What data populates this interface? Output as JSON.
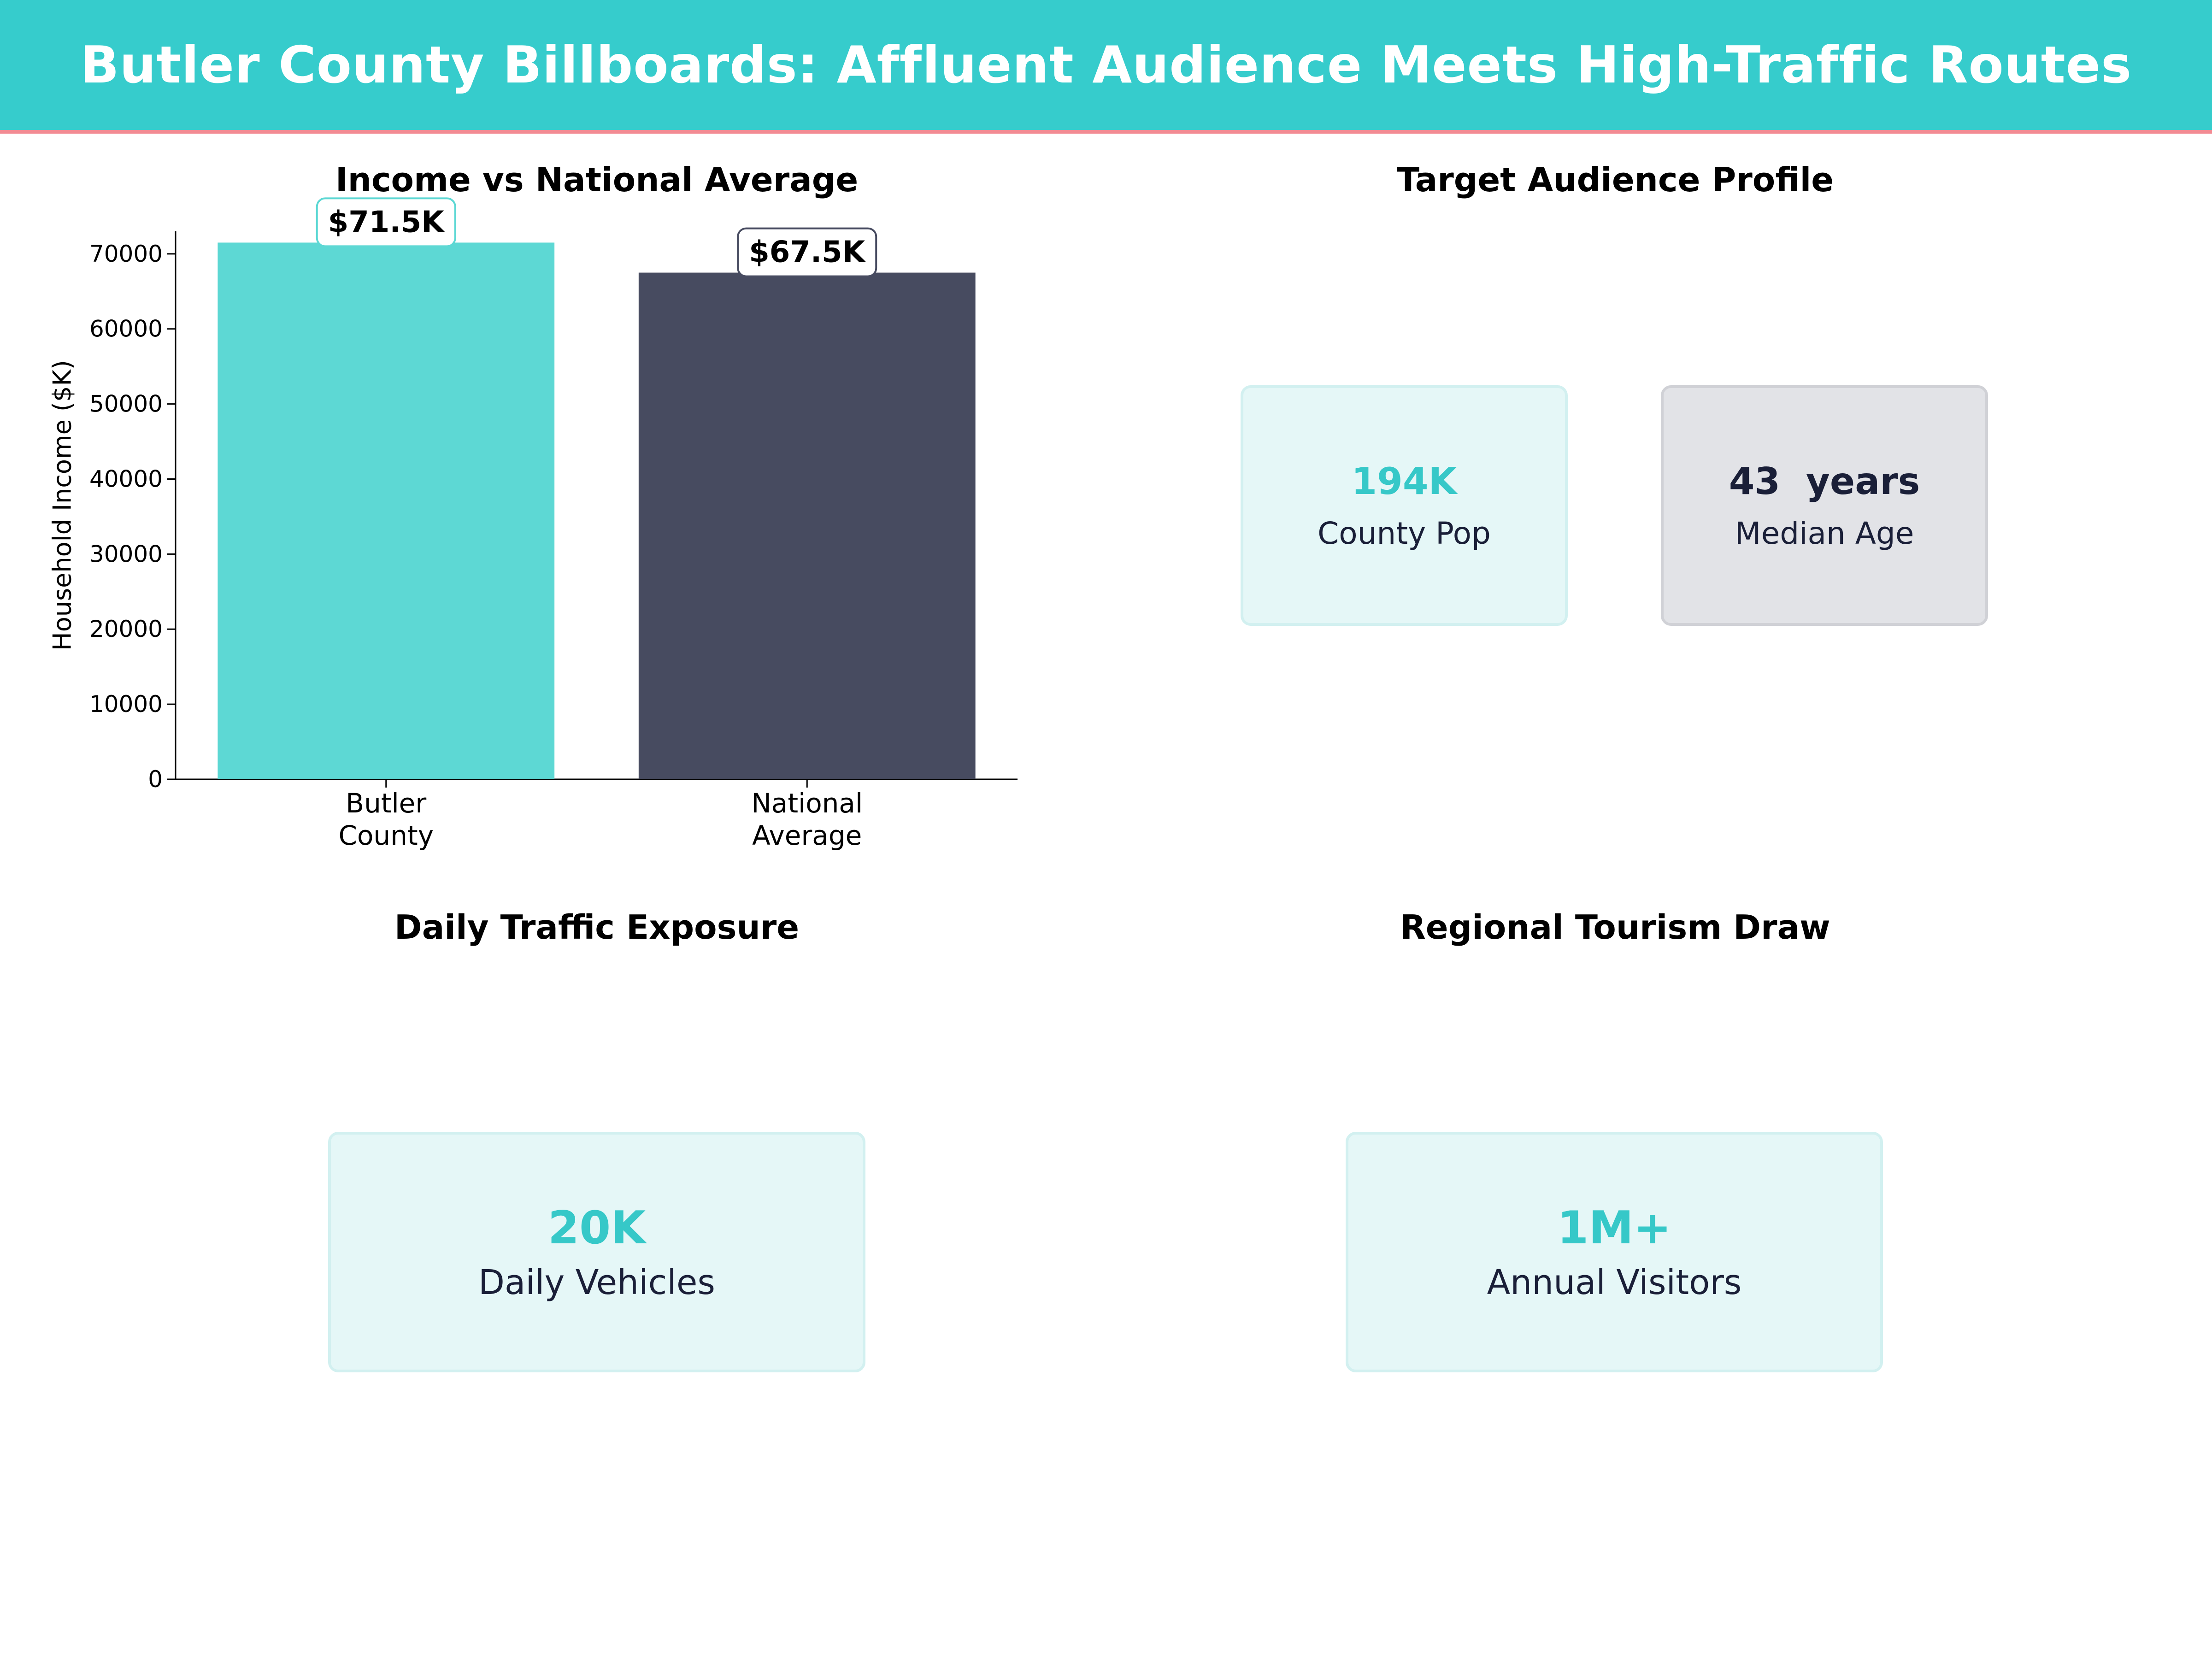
{
  "header": {
    "title": "Butler County Billboards: Affluent Audience Meets High-Traffic Routes"
  },
  "colors": {
    "header_bg": "#36cccc",
    "header_border": "#f28b93",
    "teal": "#5dd8d4",
    "teal_text": "#36c8c8",
    "navy": "#474b60",
    "navy_text": "#1a1f38"
  },
  "panels": {
    "income": {
      "title": "Income vs National Average"
    },
    "audience": {
      "title": "Target Audience Profile",
      "cards": [
        {
          "value": "194K",
          "label": "County Pop",
          "style": "teal"
        },
        {
          "value": "43  years",
          "label": "Median Age",
          "style": "slate"
        }
      ]
    },
    "traffic": {
      "title": "Daily Traffic Exposure",
      "card": {
        "value": "20K",
        "label": "Daily Vehicles"
      }
    },
    "tourism": {
      "title": "Regional Tourism Draw",
      "card": {
        "value": "1M+",
        "label": "Annual Visitors"
      }
    }
  },
  "chart_data": {
    "type": "bar",
    "title": "Income vs National Average",
    "categories": [
      [
        "Butler",
        "County"
      ],
      [
        "National",
        "Average"
      ]
    ],
    "values": [
      71500,
      67500
    ],
    "data_labels": [
      "$71.5K",
      "$67.5K"
    ],
    "bar_colors": [
      "#5dd8d4",
      "#474b60"
    ],
    "label_border_colors": [
      "#5dd8d4",
      "#474b60"
    ],
    "xlabel": "",
    "ylabel": "Household Income ($K)",
    "ylim": [
      0,
      73000
    ],
    "yticks": [
      0,
      10000,
      20000,
      30000,
      40000,
      50000,
      60000,
      70000
    ],
    "grid": false,
    "legend": "none"
  }
}
